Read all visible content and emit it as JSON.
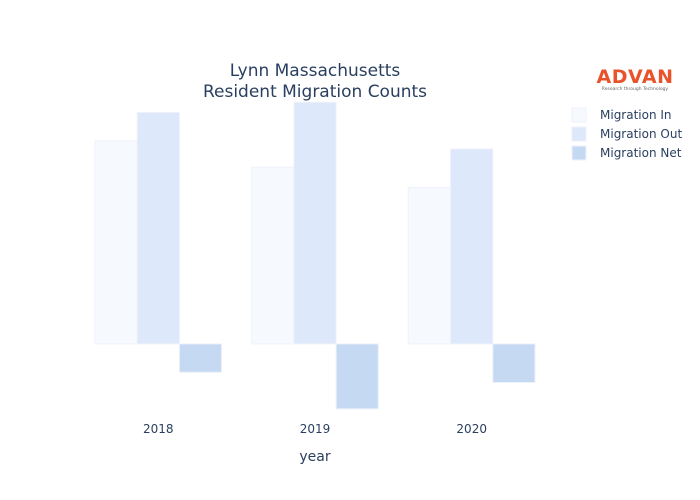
{
  "logo": {
    "name": "ADVAN",
    "tagline": "Research through Technology"
  },
  "chart_data": {
    "type": "bar",
    "title": [
      "Lynn Massachusetts",
      "Resident Migration Counts"
    ],
    "xlabel": "year",
    "ylabel": "",
    "categories": [
      "2018",
      "2019",
      "2020"
    ],
    "series": [
      {
        "name": "Migration In",
        "color": "#f6f9fe",
        "values": [
          1000,
          870,
          770
        ]
      },
      {
        "name": "Migration Out",
        "color": "#dde8fa",
        "values": [
          1140,
          1190,
          960
        ]
      },
      {
        "name": "Migration Net",
        "color": "#c6d9f2",
        "values": [
          -140,
          -320,
          -190
        ]
      }
    ],
    "ylim": [
      -360,
      1300
    ],
    "grid": false,
    "show_y_axis": false,
    "legend_position": "top-right"
  }
}
